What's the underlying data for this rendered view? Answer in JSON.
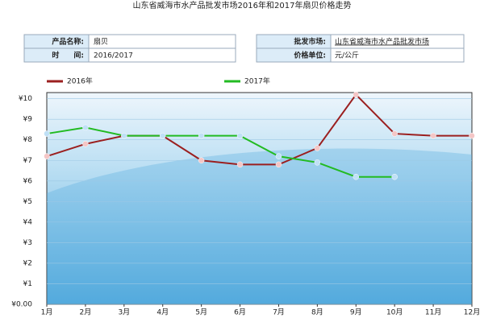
{
  "info": {
    "left": [
      [
        "产品名称:",
        "扇贝"
      ],
      [
        "时　　间:",
        "2016/2017"
      ]
    ],
    "right": [
      [
        "批发市场:",
        "山东省威海市水产品批发市场"
      ],
      [
        "价格单位:",
        "元/公斤"
      ]
    ]
  },
  "chart_data": {
    "type": "line",
    "title": "山东省威海市水产品批发市场2016年和2017年扇贝价格走势",
    "categories": [
      "1月",
      "2月",
      "3月",
      "4月",
      "5月",
      "6月",
      "7月",
      "8月",
      "9月",
      "10月",
      "11月",
      "12月"
    ],
    "series": [
      {
        "name": "2016年",
        "color": "#9b1f1f",
        "values": [
          7.2,
          7.8,
          8.2,
          8.2,
          7.0,
          6.8,
          6.8,
          7.6,
          10.2,
          8.3,
          8.2,
          8.2
        ]
      },
      {
        "name": "2017年",
        "color": "#22bb22",
        "values": [
          8.3,
          8.6,
          8.2,
          8.2,
          8.2,
          8.2,
          7.2,
          6.9,
          6.2,
          6.2,
          null,
          null
        ]
      }
    ],
    "ylim": [
      0,
      10.3
    ],
    "yticks": [
      {
        "value": 0,
        "label": "¥0.00"
      },
      {
        "value": 1,
        "label": "¥1"
      },
      {
        "value": 2,
        "label": "¥2"
      },
      {
        "value": 3,
        "label": "¥3"
      },
      {
        "value": 4,
        "label": "¥4"
      },
      {
        "value": 5,
        "label": "¥5"
      },
      {
        "value": 6,
        "label": "¥6"
      },
      {
        "value": 7,
        "label": "¥7"
      },
      {
        "value": 8,
        "label": "¥8"
      },
      {
        "value": 9,
        "label": "¥9"
      },
      {
        "value": 10,
        "label": "¥10"
      }
    ],
    "grid": true
  }
}
